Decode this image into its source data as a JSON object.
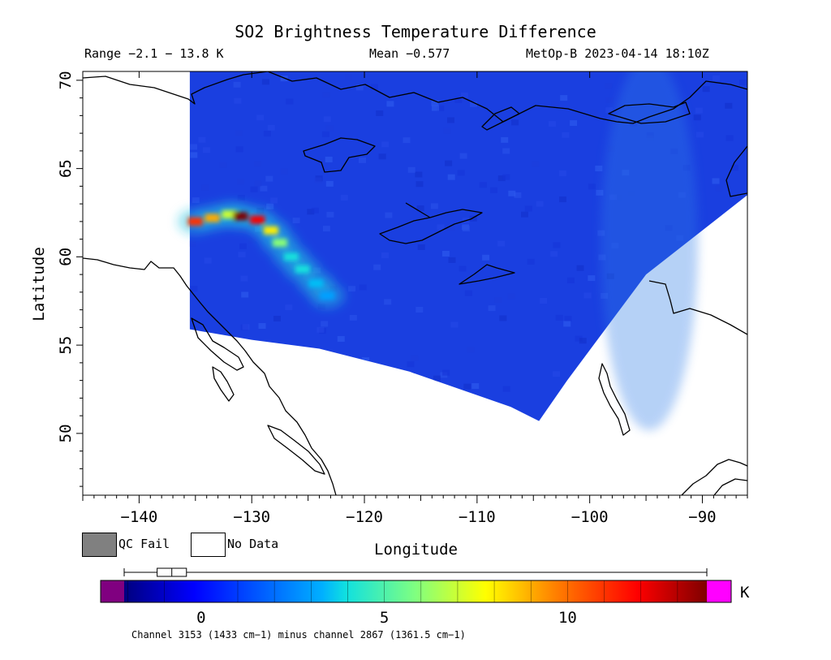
{
  "header": {
    "title": "SO2 Brightness Temperature Difference",
    "range": "Range −2.1 − 13.8 K",
    "mean": "Mean −0.577",
    "satellite": "MetOp-B 2023-04-14 18:10Z"
  },
  "axes": {
    "xlabel": "Longitude",
    "ylabel": "Latitude",
    "xlim": [
      -145,
      -86
    ],
    "ylim": [
      46.5,
      70.5
    ],
    "xticks": [
      "−140",
      "−130",
      "−120",
      "−110",
      "−100",
      "−90"
    ],
    "xtick_values": [
      -140,
      -130,
      -120,
      -110,
      -100,
      -90
    ],
    "yticks": [
      "70",
      "65",
      "60",
      "55",
      "50"
    ],
    "ytick_values": [
      70,
      65,
      60,
      55,
      50
    ]
  },
  "legend": {
    "qc_fail": "QC Fail",
    "no_data": "No Data",
    "qc_fail_color": "#808080",
    "no_data_color": "#ffffff"
  },
  "colorbar": {
    "unit": "K",
    "ticks": [
      "0",
      "5",
      "10"
    ],
    "tick_values": [
      0,
      5,
      10
    ],
    "range": [
      -2.1,
      13.8
    ],
    "under_color": "#800080",
    "over_color": "#ff00ff",
    "caption": "Channel 3153 (1433 cm−1) minus channel 2867 (1361.5 cm−1)",
    "boxplot": {
      "min": -2.1,
      "q1": -1.2,
      "median": -0.8,
      "q3": -0.4,
      "max": 13.8
    }
  },
  "chart_data": {
    "type": "heatmap",
    "title": "SO2 Brightness Temperature Difference",
    "xlabel": "Longitude",
    "ylabel": "Latitude",
    "xlim": [
      -145,
      -86
    ],
    "ylim": [
      46.5,
      70.5
    ],
    "units": "K",
    "value_range": [
      -2.1,
      13.8
    ],
    "mean": -0.577,
    "swath_outline": [
      [
        -135.5,
        70.5
      ],
      [
        -86,
        70.5
      ],
      [
        -86,
        63.5
      ],
      [
        -95,
        59
      ],
      [
        -102,
        53
      ],
      [
        -104.5,
        50.7
      ],
      [
        -107,
        51.5
      ],
      [
        -116,
        53.5
      ],
      [
        -124,
        54.8
      ],
      [
        -130,
        55.3
      ],
      [
        -135.5,
        55.9
      ]
    ],
    "plume": [
      {
        "lon": -135,
        "lat": 62.0,
        "value": 11
      },
      {
        "lon": -133.5,
        "lat": 62.2,
        "value": 9
      },
      {
        "lon": -132,
        "lat": 62.4,
        "value": 7
      },
      {
        "lon": -131,
        "lat": 62.3,
        "value": 13.8
      },
      {
        "lon": -129.5,
        "lat": 62.1,
        "value": 12
      },
      {
        "lon": -128.3,
        "lat": 61.5,
        "value": 8
      },
      {
        "lon": -127.5,
        "lat": 60.8,
        "value": 6
      },
      {
        "lon": -126.5,
        "lat": 60.0,
        "value": 4
      },
      {
        "lon": -125.5,
        "lat": 59.3,
        "value": 4
      },
      {
        "lon": -124.3,
        "lat": 58.5,
        "value": 3.5
      },
      {
        "lon": -123.3,
        "lat": 57.8,
        "value": 3
      }
    ]
  }
}
